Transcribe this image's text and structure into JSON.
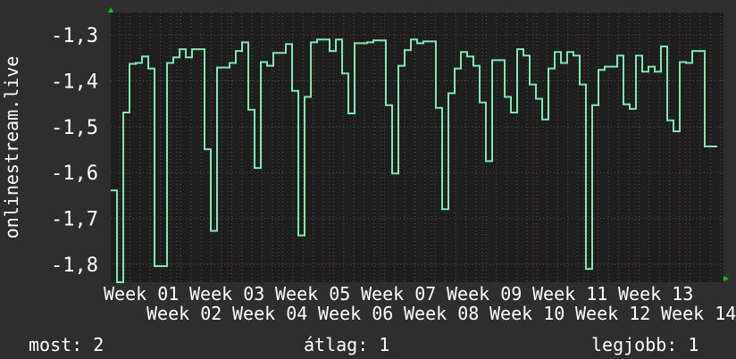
{
  "chart_data": {
    "type": "line",
    "title": "",
    "ylabel": "onlinestream.live",
    "xlabel": "",
    "ylim": [
      -1.839,
      -1.251
    ],
    "yticks": [
      "-1,3",
      "-1,4",
      "-1,5",
      "-1,6",
      "-1,7",
      "-1,8"
    ],
    "ytick_values": [
      -1.3,
      -1.4,
      -1.5,
      -1.6,
      -1.7,
      -1.8
    ],
    "xticks": [
      "Week 01",
      "Week 02",
      "Week 03",
      "Week 04",
      "Week 05",
      "Week 06",
      "Week 07",
      "Week 08",
      "Week 09",
      "Week 10",
      "Week 11",
      "Week 12",
      "Week 13",
      "Week 14"
    ],
    "grid": true,
    "line_color": "#7fe8b0",
    "series": [
      {
        "values": [
          -1.639,
          -1.84,
          -1.469,
          -1.363,
          -1.361,
          -1.347,
          -1.373,
          -1.804,
          -1.804,
          -1.361,
          -1.349,
          -1.331,
          -1.349,
          -1.331,
          -1.331,
          -1.549,
          -1.727,
          -1.371,
          -1.371,
          -1.361,
          -1.335,
          -1.316,
          -1.463,
          -1.59,
          -1.359,
          -1.367,
          -1.339,
          -1.339,
          -1.32,
          -1.422,
          -1.737,
          -1.435,
          -1.316,
          -1.31,
          -1.31,
          -1.335,
          -1.31,
          -1.384,
          -1.471,
          -1.318,
          -1.318,
          -1.316,
          -1.312,
          -1.312,
          -1.453,
          -1.602,
          -1.367,
          -1.333,
          -1.31,
          -1.318,
          -1.314,
          -1.314,
          -1.459,
          -1.68,
          -1.427,
          -1.373,
          -1.337,
          -1.347,
          -1.367,
          -1.447,
          -1.575,
          -1.355,
          -1.355,
          -1.435,
          -1.469,
          -1.331,
          -1.345,
          -1.408,
          -1.439,
          -1.484,
          -1.373,
          -1.337,
          -1.361,
          -1.337,
          -1.345,
          -1.408,
          -1.81,
          -1.453,
          -1.376,
          -1.369,
          -1.369,
          -1.345,
          -1.451,
          -1.461,
          -1.345,
          -1.38,
          -1.369,
          -1.38,
          -1.325,
          -1.486,
          -1.51,
          -1.359,
          -1.361,
          -1.335,
          -1.335,
          -1.543,
          -1.543
        ]
      }
    ]
  },
  "legend": {
    "current": "most: 2",
    "average": "átlag: 1",
    "best": "legjobb: 1"
  }
}
